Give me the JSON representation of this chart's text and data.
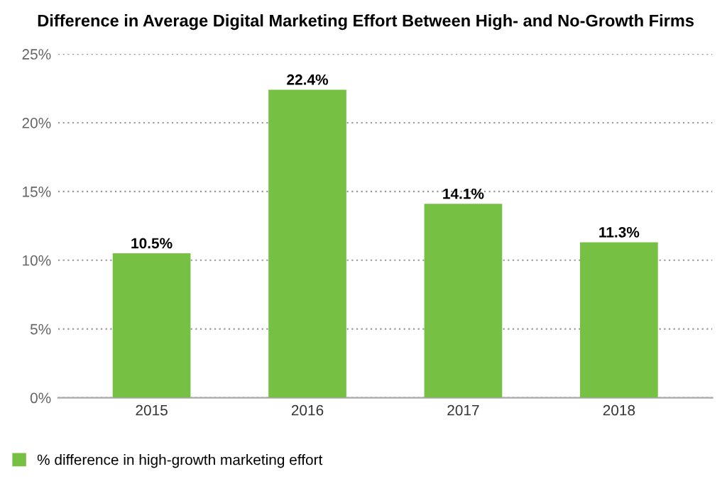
{
  "chart_data": {
    "type": "bar",
    "title": "Difference in Average Digital Marketing Effort Between High- and No-Growth Firms",
    "categories": [
      "2015",
      "2016",
      "2017",
      "2018"
    ],
    "series": [
      {
        "name": "% difference in high-growth marketing effort",
        "color": "#76c043",
        "values": [
          10.5,
          22.4,
          14.1,
          11.3
        ]
      }
    ],
    "value_labels": [
      "10.5%",
      "22.4%",
      "14.1%",
      "11.3%"
    ],
    "ylim": [
      0,
      25
    ],
    "yticks": [
      {
        "value": 0,
        "label": "0%"
      },
      {
        "value": 5,
        "label": "5%"
      },
      {
        "value": 10,
        "label": "10%"
      },
      {
        "value": 15,
        "label": "15%"
      },
      {
        "value": 20,
        "label": "20%"
      },
      {
        "value": 25,
        "label": "25%"
      }
    ],
    "grid": "y",
    "legend": "bottom left"
  }
}
